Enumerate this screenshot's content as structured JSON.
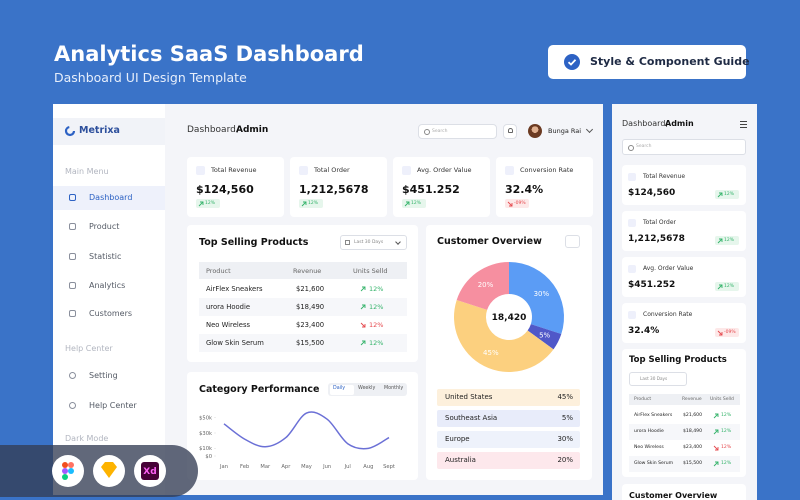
{
  "header": {
    "title": "Analytics SaaS Dashboard",
    "subtitle": "Dashboard UI Design Template",
    "button": "Style & Component Guide"
  },
  "sidebar": {
    "brand": "Metrixa",
    "main_menu": "Main Menu",
    "main_items": [
      "Dashboard",
      "Product",
      "Statistic",
      "Analytics",
      "Customers"
    ],
    "help_center": "Help Center",
    "help_items": [
      "Setting",
      "Help Center"
    ],
    "dark_mode": "Dark Mode"
  },
  "topbar": {
    "greeting": "Dashboard,",
    "role": "Admin",
    "search": "Search",
    "user": "Bunga Rai"
  },
  "stats": [
    {
      "label": "Total Revenue",
      "value": "$124,560",
      "change": "12%",
      "trend": "up"
    },
    {
      "label": "Total Order",
      "value": "1,212,5678",
      "change": "12%",
      "trend": "up"
    },
    {
      "label": "Avg. Order Value",
      "value": "$451.252",
      "change": "12%",
      "trend": "up"
    },
    {
      "label": "Conversion Rate",
      "value": "32.4%",
      "change": "-09%",
      "trend": "down"
    }
  ],
  "top_selling": {
    "title": "Top Selling Products",
    "filter": "Last 30 Days",
    "columns": [
      "Product",
      "Revenue",
      "Units Selld"
    ],
    "rows": [
      {
        "product": "AirFlex Sneakers",
        "revenue": "$21,600",
        "units": "12%",
        "trend": "up"
      },
      {
        "product": "urora Hoodie",
        "revenue": "$18,490",
        "units": "12%",
        "trend": "up"
      },
      {
        "product": "Neo Wireless",
        "revenue": "$23,400",
        "units": "12%",
        "trend": "down"
      },
      {
        "product": "Glow Skin Serum",
        "revenue": "$15,500",
        "units": "12%",
        "trend": "up"
      }
    ]
  },
  "category_performance": {
    "title": "Category Performance",
    "tabs": [
      "Daily",
      "Weekly",
      "Monthly"
    ],
    "active_tab": 0,
    "categories": [
      "Jan",
      "Feb",
      "Mar",
      "Apr",
      "May",
      "Jun",
      "Jul",
      "Aug",
      "Sept"
    ],
    "values": [
      42,
      22,
      12,
      24,
      56,
      48,
      16,
      10,
      24
    ],
    "ylim": [
      0,
      60
    ],
    "yticks": [
      {
        "value": 0,
        "label": "$0"
      },
      {
        "value": 10,
        "label": "$10k"
      },
      {
        "value": 30,
        "label": "$30k"
      },
      {
        "value": 50,
        "label": "$50k"
      }
    ],
    "color": "#6b70d6"
  },
  "customer_overview": {
    "title": "Customer Overview",
    "total": "18,420",
    "segments": [
      {
        "value": 30,
        "label": "30%",
        "color": "#5b9cf5"
      },
      {
        "value": 5,
        "label": "5%",
        "color": "#5058c8"
      },
      {
        "value": 45,
        "label": "45%",
        "color": "#fcd07f"
      },
      {
        "value": 20,
        "label": "20%",
        "color": "#f68fa0"
      }
    ],
    "regions": [
      {
        "name": "United States",
        "share": "45%",
        "color": "#fdf0dc"
      },
      {
        "name": "Southeast Asia",
        "share": "5%",
        "color": "#e8ecfa"
      },
      {
        "name": "Europe",
        "share": "30%",
        "color": "#eef2fb"
      },
      {
        "name": "Australia",
        "share": "20%",
        "color": "#fde8ec"
      }
    ]
  },
  "tools": {
    "xd": "Xd"
  }
}
